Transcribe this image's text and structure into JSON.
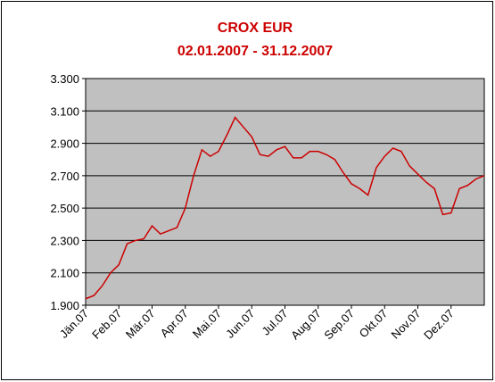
{
  "chart_data": {
    "type": "line",
    "title": "CROX EUR",
    "subtitle": "02.01.2007 - 31.12.2007",
    "categories": [
      "Jän.07",
      null,
      null,
      null,
      "Feb.07",
      null,
      null,
      null,
      "Mär.07",
      null,
      null,
      null,
      "Apr.07",
      null,
      null,
      null,
      "Mai.07",
      null,
      null,
      null,
      "Jun.07",
      null,
      null,
      null,
      "Jul.07",
      null,
      null,
      null,
      "Aug.07",
      null,
      null,
      null,
      "Sep.07",
      null,
      null,
      null,
      "Okt.07",
      null,
      null,
      null,
      "Nov.07",
      null,
      null,
      null,
      "Dez.07",
      null,
      null,
      null,
      null
    ],
    "series": [
      {
        "name": "CROX EUR",
        "color": "#cc0000",
        "values": [
          1940,
          1960,
          2020,
          2100,
          2150,
          2280,
          2300,
          2310,
          2390,
          2340,
          2360,
          2380,
          2500,
          2700,
          2860,
          2820,
          2850,
          2950,
          3060,
          3000,
          2940,
          2830,
          2820,
          2860,
          2880,
          2810,
          2810,
          2850,
          2850,
          2830,
          2800,
          2720,
          2650,
          2620,
          2580,
          2750,
          2820,
          2870,
          2850,
          2760,
          2710,
          2660,
          2620,
          2460,
          2470,
          2620,
          2640,
          2680,
          2700
        ]
      }
    ],
    "ylim": [
      1900,
      3300
    ],
    "yticks": [
      {
        "value": 1900,
        "label": "1.900"
      },
      {
        "value": 2100,
        "label": "2.100"
      },
      {
        "value": 2300,
        "label": "2.300"
      },
      {
        "value": 2500,
        "label": "2.500"
      },
      {
        "value": 2700,
        "label": "2.700"
      },
      {
        "value": 2900,
        "label": "2.900"
      },
      {
        "value": 3100,
        "label": "3.100"
      },
      {
        "value": 3300,
        "label": "3.300"
      }
    ],
    "grid": true,
    "plot_background": "#c0c0c0"
  }
}
